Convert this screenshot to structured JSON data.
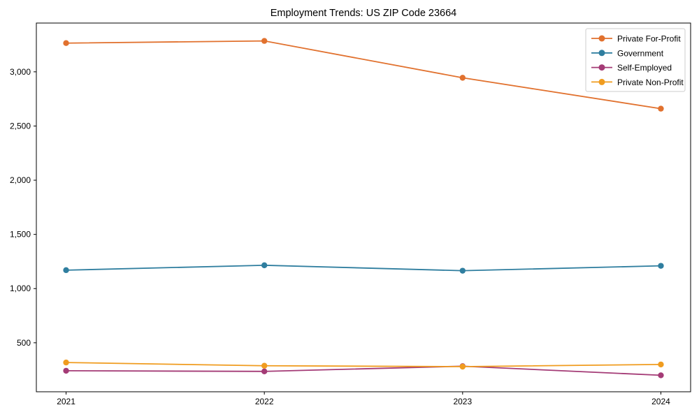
{
  "window": {
    "background": "#ffffff"
  },
  "chart_data": {
    "type": "line",
    "title": "Employment Trends: US ZIP Code 23664",
    "x": [
      2021,
      2022,
      2023,
      2024
    ],
    "xtick_labels": [
      "2021",
      "2022",
      "2023",
      "2024"
    ],
    "series": [
      {
        "name": "Private For-Profit",
        "color": "#e1712e",
        "values": [
          3265,
          3285,
          2945,
          2660
        ]
      },
      {
        "name": "Government",
        "color": "#2f7e9f",
        "values": [
          1170,
          1215,
          1165,
          1210
        ]
      },
      {
        "name": "Self-Employed",
        "color": "#a43b76",
        "values": [
          242,
          236,
          284,
          200
        ]
      },
      {
        "name": "Private Non-Profit",
        "color": "#f09c1f",
        "values": [
          318,
          288,
          280,
          300
        ]
      }
    ],
    "ylim": [
      48,
      3450
    ],
    "yticks": [
      500,
      1000,
      1500,
      2000,
      2500,
      3000
    ],
    "ytick_labels": [
      "500",
      "1,000",
      "1,500",
      "2,000",
      "2,500",
      "3,000"
    ],
    "grid": false,
    "legend_position": "upper right",
    "marker": "circle",
    "axis_color": "#000000",
    "text_color": "#000000",
    "legend_border_color": "#cccccc",
    "legend_background": "#ffffff"
  }
}
